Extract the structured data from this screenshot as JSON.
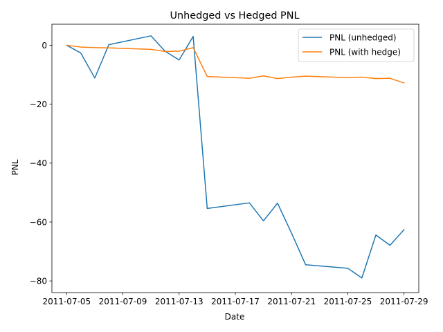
{
  "chart_data": {
    "type": "line",
    "title": "Unhedged vs Hedged PNL",
    "xlabel": "Date",
    "ylabel": "PNL",
    "x": [
      "2011-07-05",
      "2011-07-06",
      "2011-07-07",
      "2011-07-08",
      "2011-07-11",
      "2011-07-12",
      "2011-07-13",
      "2011-07-14",
      "2011-07-15",
      "2011-07-18",
      "2011-07-19",
      "2011-07-20",
      "2011-07-21",
      "2011-07-22",
      "2011-07-25",
      "2011-07-26",
      "2011-07-27",
      "2011-07-28",
      "2011-07-29"
    ],
    "series": [
      {
        "name": "PNL (unhedged)",
        "color": "#1f77b4",
        "values": [
          0.0,
          -2.6,
          -11.1,
          0.2,
          3.2,
          -2.0,
          -5.0,
          3.0,
          -55.4,
          -53.5,
          -59.6,
          -53.6,
          -63.8,
          -74.5,
          -75.7,
          -79.0,
          -64.4,
          -67.9,
          -62.6
        ]
      },
      {
        "name": "PNL (with hedge)",
        "color": "#ff7f0e",
        "values": [
          0.0,
          -0.6,
          -0.8,
          -0.9,
          -1.4,
          -2.1,
          -2.0,
          -0.8,
          -10.6,
          -11.2,
          -10.4,
          -11.3,
          -10.8,
          -10.5,
          -11.0,
          -10.8,
          -11.3,
          -11.2,
          -12.8
        ]
      }
    ],
    "xlim": [
      "2011-07-03T22:48",
      "2011-07-30T01:12"
    ],
    "ylim": [
      -83.95,
      7.15
    ],
    "x_ticks": [
      "2011-07-05",
      "2011-07-09",
      "2011-07-13",
      "2011-07-17",
      "2011-07-21",
      "2011-07-25",
      "2011-07-29"
    ],
    "y_ticks": [
      0,
      -20,
      -40,
      -60,
      -80
    ],
    "grid": false,
    "legend_position": "upper right"
  }
}
